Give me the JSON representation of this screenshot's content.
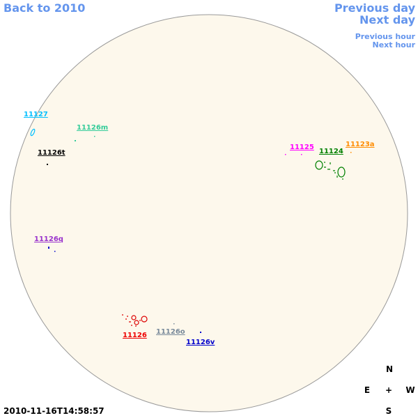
{
  "navigation": {
    "back": "Back to 2010",
    "previous_day": "Previous day",
    "next_day": "Next day",
    "previous_hour": "Previous hour",
    "next_hour": "Next hour"
  },
  "regions": [
    {
      "label": "11127"
    },
    {
      "label": "11126m"
    },
    {
      "label": "11126t"
    },
    {
      "label": "11125"
    },
    {
      "label": "11124"
    },
    {
      "label": "11123a"
    },
    {
      "label": "11126q"
    },
    {
      "label": "11126"
    },
    {
      "label": "11126o"
    },
    {
      "label": "11126v"
    }
  ],
  "compass": {
    "north": "N",
    "east": "E",
    "center": "+",
    "west": "W",
    "south": "S"
  },
  "timestamp": "2010-11-16T14:58:57"
}
